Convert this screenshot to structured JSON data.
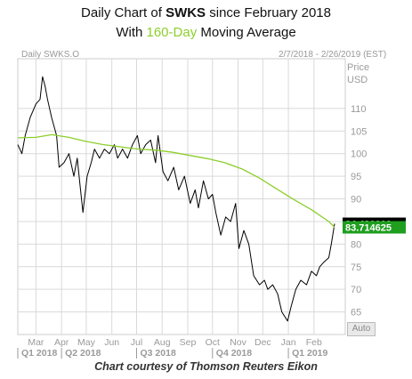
{
  "header": {
    "title_prefix": "Daily Chart of ",
    "title_ticker": "SWKS",
    "title_suffix": " since February 2018",
    "subtitle_prefix": "With ",
    "subtitle_ma": "160-Day",
    "subtitle_suffix": " Moving Average"
  },
  "chart_info": {
    "instrument": "Daily SWKS.O",
    "date_range": "2/7/2018 - 2/26/2019 (EST)",
    "axis_label_1": "Price",
    "axis_label_2": "USD"
  },
  "auto_button": "Auto",
  "caption": "Chart courtesy of Thomson Reuters Eikon",
  "colors": {
    "price_line": "#000000",
    "ma_line": "#8ccf2c",
    "price_badge": "#000000",
    "ma_badge": "#1f9e1f",
    "grid": "#d9d9d9"
  },
  "chart_data": {
    "type": "line",
    "ylim": [
      60,
      121
    ],
    "yticks": [
      65,
      70,
      75,
      80,
      85,
      90,
      95,
      100,
      105,
      110
    ],
    "month_labels": [
      "Mar",
      "Apr",
      "May",
      "Jun",
      "Jul",
      "Aug",
      "Sep",
      "Oct",
      "Nov",
      "Dec",
      "Jan",
      "Feb"
    ],
    "quarter_labels": [
      "Q1 2018",
      "Q2 2018",
      "Q3 2018",
      "Q4 2018",
      "Q1 2019"
    ],
    "last_price_label": "84.490000",
    "ma_label": "83.714625",
    "series": [
      {
        "name": "SWKS.O",
        "x": [
          "2018-02-07",
          "2018-02-12",
          "2018-02-16",
          "2018-02-22",
          "2018-03-01",
          "2018-03-06",
          "2018-03-09",
          "2018-03-12",
          "2018-03-15",
          "2018-03-20",
          "2018-03-26",
          "2018-03-29",
          "2018-04-04",
          "2018-04-10",
          "2018-04-16",
          "2018-04-20",
          "2018-04-24",
          "2018-04-27",
          "2018-05-02",
          "2018-05-07",
          "2018-05-11",
          "2018-05-17",
          "2018-05-23",
          "2018-05-29",
          "2018-06-04",
          "2018-06-08",
          "2018-06-14",
          "2018-06-20",
          "2018-06-26",
          "2018-07-02",
          "2018-07-06",
          "2018-07-12",
          "2018-07-18",
          "2018-07-24",
          "2018-07-27",
          "2018-08-02",
          "2018-08-08",
          "2018-08-15",
          "2018-08-21",
          "2018-08-28",
          "2018-09-04",
          "2018-09-10",
          "2018-09-14",
          "2018-09-20",
          "2018-09-26",
          "2018-10-01",
          "2018-10-05",
          "2018-10-11",
          "2018-10-17",
          "2018-10-23",
          "2018-10-29",
          "2018-11-02",
          "2018-11-08",
          "2018-11-14",
          "2018-11-20",
          "2018-11-27",
          "2018-12-03",
          "2018-12-07",
          "2018-12-13",
          "2018-12-19",
          "2018-12-24",
          "2018-12-31",
          "2019-01-04",
          "2019-01-10",
          "2019-01-16",
          "2019-01-23",
          "2019-01-29",
          "2019-02-04",
          "2019-02-08",
          "2019-02-13",
          "2019-02-19",
          "2019-02-22",
          "2019-02-26"
        ],
        "values": [
          102,
          100,
          104,
          108,
          111,
          112,
          117,
          115,
          112,
          108,
          104,
          97,
          98,
          100,
          95,
          99,
          92,
          87,
          95,
          98,
          101,
          99,
          101,
          100,
          102,
          99,
          101,
          99,
          102,
          104,
          100,
          102,
          103,
          98,
          104,
          96,
          94,
          97,
          92,
          95,
          89,
          92,
          88,
          94,
          90,
          91,
          87,
          82,
          86,
          85,
          89,
          79,
          83,
          80,
          73,
          71,
          72,
          70,
          71,
          69,
          65,
          63,
          66,
          70,
          72,
          71,
          74,
          73,
          75,
          76,
          77,
          80,
          84.49
        ]
      },
      {
        "name": "160-Day MA",
        "x": [
          "2018-02-07",
          "2018-03-01",
          "2018-03-20",
          "2018-04-10",
          "2018-05-01",
          "2018-05-22",
          "2018-06-12",
          "2018-07-03",
          "2018-07-24",
          "2018-08-14",
          "2018-09-04",
          "2018-09-25",
          "2018-10-16",
          "2018-11-06",
          "2018-11-27",
          "2018-12-18",
          "2019-01-08",
          "2019-01-29",
          "2019-02-19",
          "2019-02-26"
        ],
        "values": [
          103.5,
          103.6,
          104.2,
          103.6,
          102.7,
          102.0,
          101.5,
          101.0,
          100.8,
          100.3,
          99.6,
          98.9,
          98.0,
          96.6,
          94.6,
          92.2,
          89.8,
          87.6,
          85.0,
          83.71
        ]
      }
    ]
  }
}
